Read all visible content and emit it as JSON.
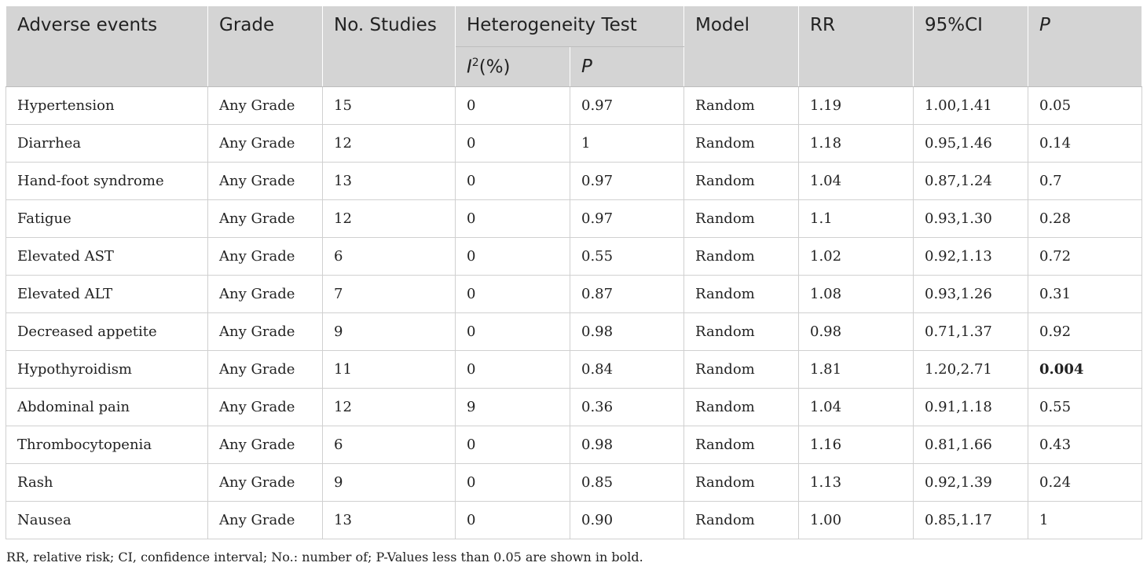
{
  "table": {
    "headers": {
      "adverse_events": "Adverse events",
      "grade": "Grade",
      "no_studies": "No. Studies",
      "heterogeneity": "Heterogeneity Test",
      "i2_base": "I",
      "i2_sup": "2",
      "i2_unit": "(%)",
      "het_p": "P",
      "model": "Model",
      "rr": "RR",
      "ci": "95%CI",
      "p": "P"
    },
    "rows": [
      {
        "event": "Hypertension",
        "grade": "Any Grade",
        "studies": "15",
        "i2": "0",
        "het_p": "0.97",
        "model": "Random",
        "rr": "1.19",
        "ci": "1.00,1.41",
        "p": "0.05"
      },
      {
        "event": "Diarrhea",
        "grade": "Any Grade",
        "studies": "12",
        "i2": "0",
        "het_p": "1",
        "model": "Random",
        "rr": "1.18",
        "ci": "0.95,1.46",
        "p": "0.14"
      },
      {
        "event": "Hand-foot syndrome",
        "grade": "Any Grade",
        "studies": "13",
        "i2": "0",
        "het_p": "0.97",
        "model": "Random",
        "rr": "1.04",
        "ci": "0.87,1.24",
        "p": "0.7"
      },
      {
        "event": "Fatigue",
        "grade": "Any Grade",
        "studies": "12",
        "i2": "0",
        "het_p": "0.97",
        "model": "Random",
        "rr": "1.1",
        "ci": "0.93,1.30",
        "p": "0.28"
      },
      {
        "event": "Elevated AST",
        "grade": "Any Grade",
        "studies": "6",
        "i2": "0",
        "het_p": "0.55",
        "model": "Random",
        "rr": "1.02",
        "ci": "0.92,1.13",
        "p": "0.72"
      },
      {
        "event": "Elevated ALT",
        "grade": "Any Grade",
        "studies": "7",
        "i2": "0",
        "het_p": "0.87",
        "model": "Random",
        "rr": "1.08",
        "ci": "0.93,1.26",
        "p": "0.31"
      },
      {
        "event": "Decreased appetite",
        "grade": "Any Grade",
        "studies": "9",
        "i2": "0",
        "het_p": "0.98",
        "model": "Random",
        "rr": "0.98",
        "ci": "0.71,1.37",
        "p": "0.92"
      },
      {
        "event": "Hypothyroidism",
        "grade": "Any Grade",
        "studies": "11",
        "i2": "0",
        "het_p": "0.84",
        "model": "Random",
        "rr": "1.81",
        "ci": "1.20,2.71",
        "p": "0.004"
      },
      {
        "event": "Abdominal pain",
        "grade": "Any Grade",
        "studies": "12",
        "i2": "9",
        "het_p": "0.36",
        "model": "Random",
        "rr": "1.04",
        "ci": "0.91,1.18",
        "p": "0.55"
      },
      {
        "event": "Thrombocytopenia",
        "grade": "Any Grade",
        "studies": "6",
        "i2": "0",
        "het_p": "0.98",
        "model": "Random",
        "rr": "1.16",
        "ci": "0.81,1.66",
        "p": "0.43"
      },
      {
        "event": "Rash",
        "grade": "Any Grade",
        "studies": "9",
        "i2": "0",
        "het_p": "0.85",
        "model": "Random",
        "rr": "1.13",
        "ci": "0.92,1.39",
        "p": "0.24"
      },
      {
        "event": "Nausea",
        "grade": "Any Grade",
        "studies": "13",
        "i2": "0",
        "het_p": "0.90",
        "model": "Random",
        "rr": "1.00",
        "ci": "0.85,1.17",
        "p": "1"
      }
    ]
  },
  "footnote": "RR, relative risk; CI, confidence interval; No.: number of; P-Values less than 0.05 are shown in bold."
}
